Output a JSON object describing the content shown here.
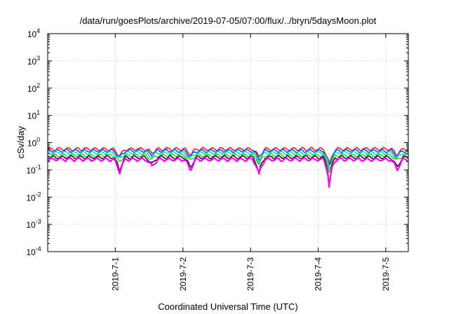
{
  "chart_data": {
    "type": "line",
    "title": "/data/run/goesPlots/archive/2019-07-05/07:00/flux/../bryn/5daysMoon.plot",
    "xlabel": "Coordinated Universal Time (UTC)",
    "ylabel": "cSv/day",
    "y_scale": "log",
    "ylim_exponents": [
      -4,
      4
    ],
    "y_tick_exponents": [
      -4,
      -3,
      -2,
      -1,
      0,
      1,
      2,
      3,
      4
    ],
    "y_tick_base": "10",
    "xlim": [
      "2019-06-30T00:00",
      "2019-07-05T08:00"
    ],
    "x_ticks": [
      {
        "label": "2019-7-1",
        "value": "2019-07-01"
      },
      {
        "label": "2019-7-2",
        "value": "2019-07-02"
      },
      {
        "label": "2019-7-3",
        "value": "2019-07-03"
      },
      {
        "label": "2019-7-4",
        "value": "2019-07-04"
      },
      {
        "label": "2019-7-5",
        "value": "2019-07-05"
      }
    ],
    "grid": true,
    "series": [
      {
        "color": "#e0202a",
        "level": 0.58
      },
      {
        "color": "#1f4fe0",
        "level": 0.5
      },
      {
        "color": "#00d8e0",
        "level": 0.42
      },
      {
        "color": "#2ed02e",
        "level": 0.34
      },
      {
        "color": "#1a1a1a",
        "level": 0.29
      },
      {
        "color": "#ff00ff",
        "level": 0.24
      }
    ],
    "dips": [
      {
        "at": "2019-07-01T01:30",
        "factor": 0.32
      },
      {
        "at": "2019-07-01T13:00",
        "factor": 0.55
      },
      {
        "at": "2019-07-02T02:40",
        "factor": 0.4
      },
      {
        "at": "2019-07-03T03:00",
        "factor": 0.25
      },
      {
        "at": "2019-07-04T04:00",
        "factor": 0.06
      },
      {
        "at": "2019-07-05T04:00",
        "factor": 0.4
      }
    ]
  }
}
